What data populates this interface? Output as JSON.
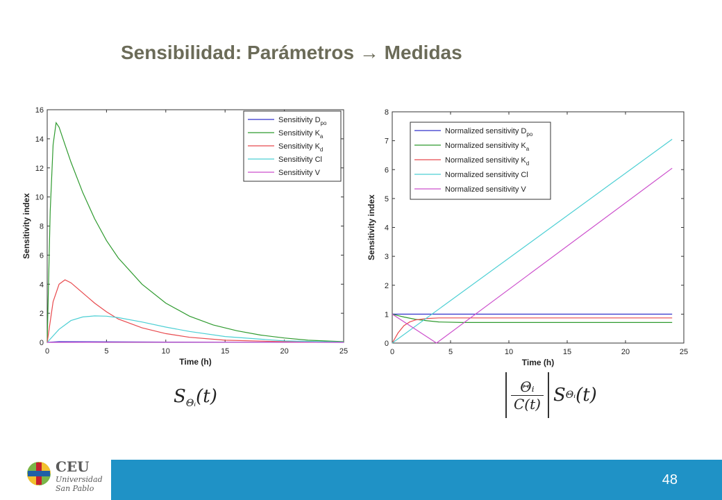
{
  "slide": {
    "title": "Sensibilidad: Parámetros → Medidas",
    "page_number": "48",
    "logo": {
      "main": "CEU",
      "line1": "Universidad",
      "line2": "San Pablo"
    }
  },
  "formulas": {
    "left": "S",
    "left_sub": "Θᵢ",
    "left_arg": "(t)",
    "right_num": "Θᵢ",
    "right_den": "C(t)"
  },
  "colors": {
    "D_po": "#3333cc",
    "K_a": "#2e9a2e",
    "K_d": "#e8494d",
    "Cl": "#4ccfd4",
    "V": "#cc4fcc",
    "footer": "#1f92c6",
    "title": "#6b6b58"
  },
  "chart_data": [
    {
      "type": "line",
      "xlabel": "Time (h)",
      "ylabel": "Sensitivity index",
      "xlim": [
        0,
        25
      ],
      "ylim": [
        0,
        16
      ],
      "xticks": [
        0,
        5,
        10,
        15,
        20,
        25
      ],
      "yticks": [
        0,
        2,
        4,
        6,
        8,
        10,
        12,
        14,
        16
      ],
      "legend_position": "top-right",
      "series": [
        {
          "label": "Sensitivity D",
          "sub": "po",
          "color_key": "D_po",
          "x": [
            0,
            1,
            5,
            10,
            15,
            20,
            25
          ],
          "y": [
            0,
            0.05,
            0.04,
            0.02,
            0.01,
            0.01,
            0
          ]
        },
        {
          "label": "Sensitivity K",
          "sub": "a",
          "color_key": "K_a",
          "x": [
            0,
            0.25,
            0.5,
            0.75,
            1,
            1.5,
            2,
            3,
            4,
            5,
            6,
            8,
            10,
            12,
            14,
            16,
            18,
            20,
            22,
            25
          ],
          "y": [
            0,
            9.0,
            13.6,
            15.1,
            14.8,
            13.6,
            12.4,
            10.3,
            8.5,
            7.0,
            5.8,
            4.0,
            2.7,
            1.8,
            1.2,
            0.8,
            0.5,
            0.3,
            0.15,
            0.05
          ]
        },
        {
          "label": "Sensitivity K",
          "sub": "d",
          "color_key": "K_d",
          "x": [
            0,
            0.5,
            1,
            1.5,
            2,
            3,
            4,
            5,
            6,
            8,
            10,
            12,
            15,
            20,
            25
          ],
          "y": [
            0,
            2.8,
            4.0,
            4.3,
            4.1,
            3.4,
            2.7,
            2.1,
            1.6,
            1.0,
            0.6,
            0.35,
            0.15,
            0.05,
            0.01
          ]
        },
        {
          "label": "Sensitivity Cl",
          "sub": "",
          "color_key": "Cl",
          "x": [
            0,
            1,
            2,
            3,
            4,
            5,
            6,
            8,
            10,
            12,
            15,
            20,
            25
          ],
          "y": [
            0,
            0.9,
            1.5,
            1.75,
            1.82,
            1.8,
            1.7,
            1.4,
            1.05,
            0.75,
            0.4,
            0.1,
            0.02
          ]
        },
        {
          "label": "Sensitivity V",
          "sub": "",
          "color_key": "V",
          "x": [
            0,
            5,
            10,
            15,
            20,
            25
          ],
          "y": [
            0,
            0.01,
            0.01,
            0.01,
            0.01,
            0
          ]
        }
      ]
    },
    {
      "type": "line",
      "xlabel": "Time (h)",
      "ylabel": "Sensitivity index",
      "xlim": [
        0,
        25
      ],
      "ylim": [
        0,
        8
      ],
      "xticks": [
        0,
        5,
        10,
        15,
        20,
        25
      ],
      "yticks": [
        0,
        1,
        2,
        3,
        4,
        5,
        6,
        7,
        8
      ],
      "legend_position": "top-left",
      "series": [
        {
          "label": "Normalized sensitivity D",
          "sub": "po",
          "color_key": "D_po",
          "x": [
            0,
            24
          ],
          "y": [
            1.0,
            1.0
          ]
        },
        {
          "label": "Normalized sensitivity K",
          "sub": "a",
          "color_key": "K_a",
          "x": [
            0,
            1,
            2,
            3,
            4,
            6,
            24
          ],
          "y": [
            1.0,
            0.9,
            0.82,
            0.77,
            0.73,
            0.71,
            0.71
          ]
        },
        {
          "label": "Normalized sensitivity K",
          "sub": "d",
          "color_key": "K_d",
          "x": [
            0,
            0.5,
            1,
            1.5,
            2,
            3,
            4,
            24
          ],
          "y": [
            0,
            0.35,
            0.6,
            0.73,
            0.8,
            0.85,
            0.87,
            0.87
          ]
        },
        {
          "label": "Normalized sensitivity Cl",
          "sub": "",
          "color_key": "Cl",
          "x": [
            0,
            24
          ],
          "y": [
            0,
            7.05
          ]
        },
        {
          "label": "Normalized sensitivity V",
          "sub": "",
          "color_key": "V",
          "x": [
            0,
            3.8,
            24
          ],
          "y": [
            1.0,
            0,
            6.05
          ]
        }
      ]
    }
  ]
}
